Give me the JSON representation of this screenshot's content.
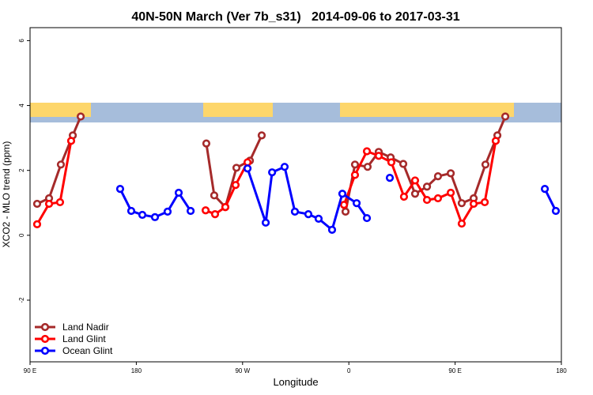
{
  "chart_data": {
    "type": "line",
    "title": "40N-50N March (Ver 7b_s31)   2014-09-06 to 2017-03-31",
    "x_label": "Longitude",
    "y_label": "XCO2 - MLO trend (ppm)",
    "xlim": [
      90,
      540
    ],
    "ylim": [
      -3.9,
      6.4
    ],
    "xticks": [
      {
        "value": 90,
        "label": "90 E"
      },
      180,
      {
        "value": 270,
        "label": "90 W"
      },
      {
        "value": 360,
        "label": "0"
      },
      {
        "value": 450,
        "label": "90 E"
      },
      {
        "value": 540,
        "label": "180"
      }
    ],
    "yticks": [
      -2,
      0,
      2,
      4,
      6
    ],
    "legend": "bottom-left",
    "series": [
      {
        "name": "Land Nadir",
        "color": "#a52a2a",
        "x": [
          96.0,
          106.1,
          116.1,
          126.2,
          132.9,
          null,
          239.3,
          246.0,
          255.4,
          264.8,
          276.2,
          286.2,
          null,
          357.2,
          365.2,
          375.9,
          385.3,
          395.4,
          406.1,
          416.1,
          426.2,
          435.5,
          446.3,
          455.6,
          465.7,
          475.7,
          485.8,
          492.5
        ],
        "values": [
          0.97,
          1.14,
          2.18,
          3.08,
          3.66,
          null,
          2.83,
          1.23,
          0.87,
          2.08,
          2.3,
          3.08,
          null,
          0.73,
          2.18,
          2.11,
          2.57,
          2.4,
          2.2,
          1.28,
          1.5,
          1.82,
          1.91,
          0.99,
          1.14,
          2.18,
          3.08,
          3.66
        ]
      },
      {
        "name": "Land Glint",
        "color": "#ff0000",
        "x": [
          96.0,
          106.1,
          115.4,
          124.8,
          null,
          238.7,
          246.7,
          255.4,
          264.1,
          274.2,
          null,
          355.9,
          365.2,
          375.3,
          385.3,
          396.0,
          406.7,
          416.1,
          426.2,
          435.5,
          446.3,
          455.6,
          465.7,
          475.1,
          484.4
        ],
        "values": [
          0.34,
          0.97,
          1.02,
          2.91,
          null,
          0.77,
          0.65,
          0.87,
          1.55,
          2.25,
          null,
          0.94,
          1.86,
          2.59,
          2.45,
          2.25,
          1.19,
          1.69,
          1.09,
          1.14,
          1.31,
          0.36,
          0.97,
          1.02,
          2.91
        ]
      },
      {
        "name": "Ocean Glint",
        "color": "#0000ff",
        "x": [
          166.3,
          175.7,
          185.1,
          195.8,
          206.5,
          215.9,
          226.0,
          null,
          274.2,
          289.6,
          295.0,
          305.6,
          314.3,
          325.7,
          334.4,
          345.8,
          354.5,
          366.6,
          375.3,
          null,
          394.7,
          null,
          526.0,
          535.3
        ],
        "values": [
          1.43,
          0.75,
          0.63,
          0.56,
          0.73,
          1.31,
          0.75,
          null,
          2.06,
          0.39,
          1.94,
          2.11,
          0.73,
          0.65,
          0.51,
          0.17,
          1.28,
          0.99,
          0.53,
          null,
          1.77,
          null,
          1.43,
          0.75
        ]
      }
    ]
  }
}
